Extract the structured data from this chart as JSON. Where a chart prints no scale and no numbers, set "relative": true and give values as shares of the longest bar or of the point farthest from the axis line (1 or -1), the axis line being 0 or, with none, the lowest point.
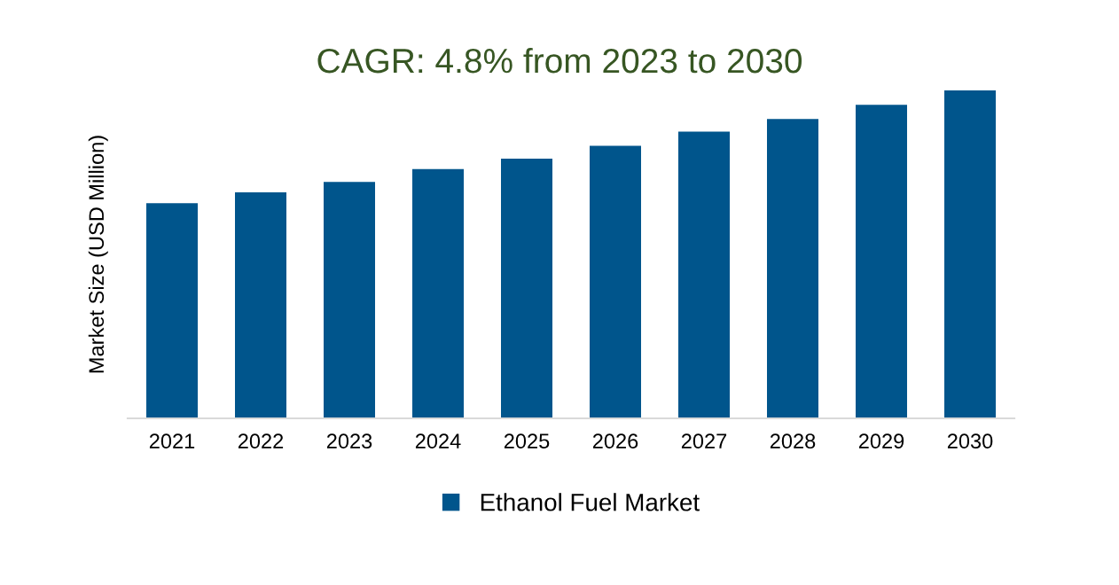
{
  "chart_data": {
    "type": "bar",
    "title": "CAGR: 4.8% from 2023 to 2030",
    "ylabel": "Market Size (USD Million)",
    "relative": true,
    "categories": [
      "2021",
      "2022",
      "2023",
      "2024",
      "2025",
      "2026",
      "2027",
      "2028",
      "2029",
      "2030"
    ],
    "series": [
      {
        "name": "Ethanol Fuel Market",
        "color": "#00558c",
        "values": [
          0.656,
          0.689,
          0.721,
          0.76,
          0.792,
          0.831,
          0.874,
          0.913,
          0.956,
          1
        ]
      }
    ],
    "legend": "bottom",
    "grid": false
  }
}
